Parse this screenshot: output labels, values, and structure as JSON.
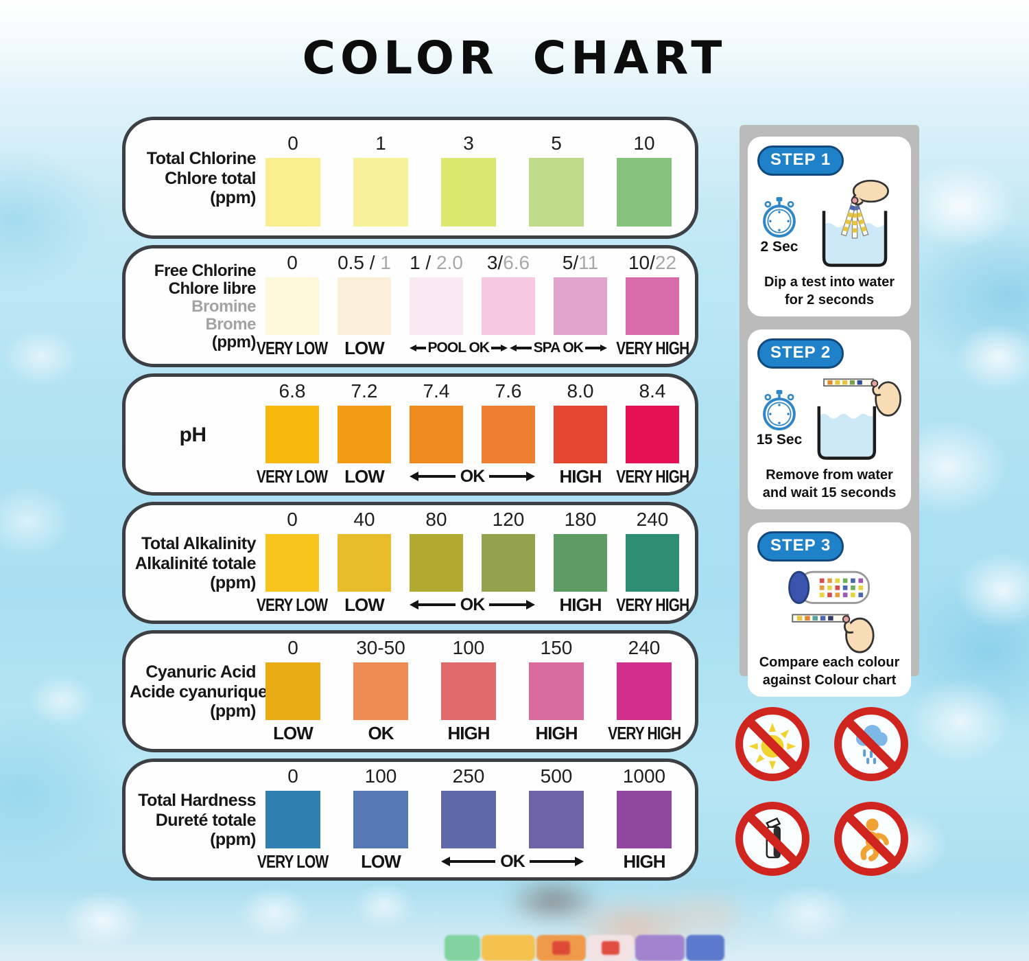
{
  "title": "COLOR CHART",
  "colors": {
    "panel_border": "#3c4045",
    "step_badge_bg": "#1f82c8",
    "step_badge_border": "#11497e",
    "prohibit_red": "#d0241e",
    "gray_text": "#a3a3a3"
  },
  "chart_data": [
    {
      "type": "table",
      "id": "total-chlorine",
      "title_lines": [
        {
          "text": "Total Chlorine"
        },
        {
          "text": "Chlore total"
        },
        {
          "text": "(ppm)"
        }
      ],
      "columns": [
        {
          "value": "0",
          "color": "#f9ef8e"
        },
        {
          "value": "1",
          "color": "#f6f29c"
        },
        {
          "value": "3",
          "color": "#dce76f"
        },
        {
          "value": "5",
          "color": "#bedb8a"
        },
        {
          "value": "10",
          "color": "#85c37d"
        }
      ],
      "statuses": []
    },
    {
      "type": "table",
      "id": "free-chlorine-bromine",
      "title_lines": [
        {
          "text": "Free Chlorine"
        },
        {
          "text": "Chlore libre"
        },
        {
          "text": "Bromine",
          "gray": true
        },
        {
          "text": "Brome",
          "gray": true
        },
        {
          "text": "(ppm)"
        }
      ],
      "columns": [
        {
          "value": "0",
          "color": "#fcf8d9"
        },
        {
          "value": "0.5 / ",
          "value_gray": "1",
          "color": "#faf0da"
        },
        {
          "value": "1 / ",
          "value_gray": "2.0",
          "color": "#f8e9f2"
        },
        {
          "value": "3/",
          "value_gray": "6.6",
          "color": "#f6c8e1"
        },
        {
          "value": "5/",
          "value_gray": "11",
          "color": "#e0a4cd"
        },
        {
          "value": "10/",
          "value_gray": "22",
          "color": "#d76cab"
        }
      ],
      "statuses": [
        {
          "label": "VERY LOW",
          "span": 1
        },
        {
          "label": "LOW",
          "span": 1
        },
        {
          "group": [
            "POOL OK",
            "SPA OK"
          ],
          "span": 3,
          "arrows": true
        },
        {
          "label": "VERY HIGH",
          "span": 1
        }
      ]
    },
    {
      "type": "table",
      "id": "ph",
      "title_lines": [
        {
          "text": "pH"
        }
      ],
      "columns": [
        {
          "value": "6.8",
          "color": "#f6b80d"
        },
        {
          "value": "7.2",
          "color": "#f29b13"
        },
        {
          "value": "7.4",
          "color": "#ef8a20"
        },
        {
          "value": "7.6",
          "color": "#ec7f30"
        },
        {
          "value": "8.0",
          "color": "#e54530"
        },
        {
          "value": "8.4",
          "color": "#e40f55"
        }
      ],
      "statuses": [
        {
          "label": "VERY LOW",
          "span": 1
        },
        {
          "label": "LOW",
          "span": 1
        },
        {
          "label": "OK",
          "span": 2,
          "arrows": true
        },
        {
          "label": "HIGH",
          "span": 1
        },
        {
          "label": "VERY HIGH",
          "span": 1
        }
      ]
    },
    {
      "type": "table",
      "id": "total-alkalinity",
      "title_lines": [
        {
          "text": "Total Alkalinity"
        },
        {
          "text": "Alkalinité totale"
        },
        {
          "text": "(ppm)"
        }
      ],
      "columns": [
        {
          "value": "0",
          "color": "#f7c51d"
        },
        {
          "value": "40",
          "color": "#e7bd2c"
        },
        {
          "value": "80",
          "color": "#b2a931"
        },
        {
          "value": "120",
          "color": "#94a250"
        },
        {
          "value": "180",
          "color": "#5e9c64"
        },
        {
          "value": "240",
          "color": "#2d8e73"
        }
      ],
      "statuses": [
        {
          "label": "VERY LOW",
          "span": 1
        },
        {
          "label": "LOW",
          "span": 1
        },
        {
          "label": "OK",
          "span": 2,
          "arrows": true
        },
        {
          "label": "HIGH",
          "span": 1
        },
        {
          "label": "VERY HIGH",
          "span": 1
        }
      ]
    },
    {
      "type": "table",
      "id": "cyanuric-acid",
      "title_lines": [
        {
          "text": "Cyanuric Acid"
        },
        {
          "text": "Acide cyanurique"
        },
        {
          "text": "(ppm)"
        }
      ],
      "columns": [
        {
          "value": "0",
          "color": "#e9ac15"
        },
        {
          "value": "30-50",
          "color": "#ed8d53"
        },
        {
          "value": "100",
          "color": "#e06a6a"
        },
        {
          "value": "150",
          "color": "#d96b9d"
        },
        {
          "value": "240",
          "color": "#d12d8c"
        }
      ],
      "statuses": [
        {
          "label": "LOW",
          "span": 1
        },
        {
          "label": "OK",
          "span": 1
        },
        {
          "label": "HIGH",
          "span": 1
        },
        {
          "label": "HIGH",
          "span": 1
        },
        {
          "label": "VERY HIGH",
          "span": 1
        }
      ]
    },
    {
      "type": "table",
      "id": "total-hardness",
      "title_lines": [
        {
          "text": "Total Hardness"
        },
        {
          "text": "Dureté totale"
        },
        {
          "text": "(ppm)"
        }
      ],
      "columns": [
        {
          "value": "0",
          "color": "#2f80b0"
        },
        {
          "value": "100",
          "color": "#5679b4"
        },
        {
          "value": "250",
          "color": "#5f68a8"
        },
        {
          "value": "500",
          "color": "#6f63a8"
        },
        {
          "value": "1000",
          "color": "#92479f"
        }
      ],
      "statuses": [
        {
          "label": "VERY LOW",
          "span": 1
        },
        {
          "label": "LOW",
          "span": 1
        },
        {
          "label": "OK",
          "span": 2,
          "arrows": true
        },
        {
          "label": "HIGH",
          "span": 1
        }
      ]
    }
  ],
  "steps": [
    {
      "badge": "STEP 1",
      "timer": "2 Sec",
      "caption": "Dip a test into water\nfor 2 seconds"
    },
    {
      "badge": "STEP 2",
      "timer": "15 Sec",
      "caption": "Remove from water\nand wait 15 seconds"
    },
    {
      "badge": "STEP 3",
      "timer": "",
      "caption": "Compare each colour\nagainst Colour chart"
    }
  ],
  "warnings": [
    {
      "icon": "no-direct-sunlight"
    },
    {
      "icon": "no-rain"
    },
    {
      "icon": "keep-container-closed"
    },
    {
      "icon": "keep-away-from-children"
    }
  ]
}
